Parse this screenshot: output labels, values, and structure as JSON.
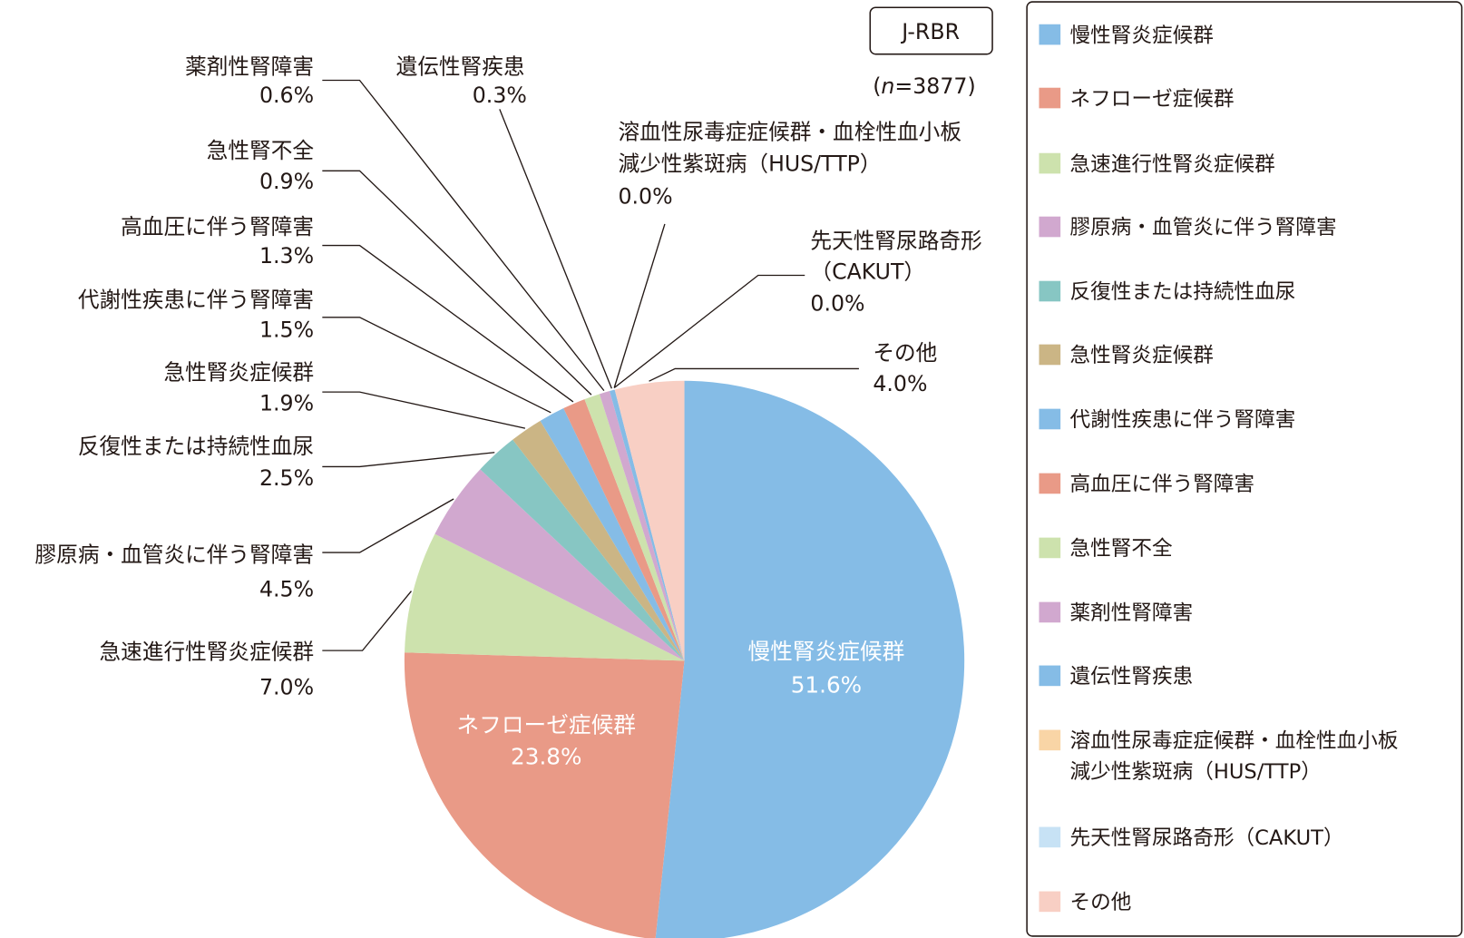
{
  "chart_data": {
    "type": "pie",
    "badge": "J-RBR",
    "n_label_prefix": "(",
    "n_label_var": "n",
    "n_label_rest": "=3877)",
    "start": "top",
    "direction": "clockwise",
    "legend_position": "right",
    "slices": [
      {
        "label": "慢性腎炎症候群",
        "value": 51.6,
        "value_label": "51.6%",
        "color": "#85bce6"
      },
      {
        "label": "ネフローゼ症候群",
        "value": 23.8,
        "value_label": "23.8%",
        "color": "#e99a87"
      },
      {
        "label": "急速進行性腎炎症候群",
        "value": 7.0,
        "value_label": "7.0%",
        "color": "#cde2ad"
      },
      {
        "label": "膠原病・血管炎に伴う腎障害",
        "value": 4.5,
        "value_label": "4.5%",
        "color": "#d1a8cf"
      },
      {
        "label": "反復性または持続性血尿",
        "value": 2.5,
        "value_label": "2.5%",
        "color": "#87c6c3"
      },
      {
        "label": "急性腎炎症候群",
        "value": 1.9,
        "value_label": "1.9%",
        "color": "#cbb585"
      },
      {
        "label": "代謝性疾患に伴う腎障害",
        "value": 1.5,
        "value_label": "1.5%",
        "color": "#85bce6"
      },
      {
        "label": "高血圧に伴う腎障害",
        "value": 1.3,
        "value_label": "1.3%",
        "color": "#e99a87"
      },
      {
        "label": "急性腎不全",
        "value": 0.9,
        "value_label": "0.9%",
        "color": "#cde2ad"
      },
      {
        "label": "薬剤性腎障害",
        "value": 0.6,
        "value_label": "0.6%",
        "color": "#d1a8cf"
      },
      {
        "label": "遺伝性腎疾患",
        "value": 0.3,
        "value_label": "0.3%",
        "color": "#85bce6"
      },
      {
        "label": "溶血性尿毒症症候群・血栓性血小板減少性紫斑病（HUS/TTP）",
        "label_lines": [
          "溶血性尿毒症症候群・血栓性血小板",
          "減少性紫斑病（HUS/TTP）"
        ],
        "legend_lines": [
          "溶血性尿毒症症候群・血栓性血小板",
          "減少性紫斑病（HUS/TTP）"
        ],
        "value": 0.0,
        "value_label": "0.0%",
        "color": "#f9d5a6"
      },
      {
        "label": "先天性腎尿路奇形（CAKUT）",
        "label_lines": [
          "先天性腎尿路奇形",
          "（CAKUT）"
        ],
        "value": 0.0,
        "value_label": "0.0%",
        "color": "#c7e2f5"
      },
      {
        "label": "その他",
        "value": 4.0,
        "value_label": "4.0%",
        "color": "#f8cfc4"
      }
    ]
  }
}
